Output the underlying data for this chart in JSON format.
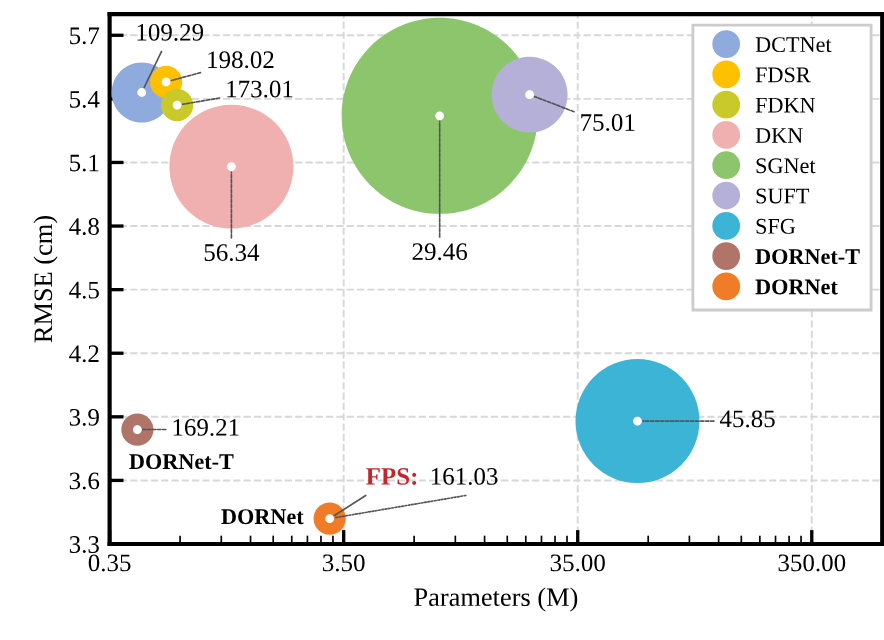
{
  "chart_data": {
    "type": "bubble",
    "xlabel": "Parameters (M)",
    "ylabel": "RMSE (cm)",
    "log": "x",
    "xlim": [
      0.35,
      700
    ],
    "xticks": [
      {
        "value": 0.35,
        "label": "0.35"
      },
      {
        "value": 3.5,
        "label": "3.50"
      },
      {
        "value": 35,
        "label": "35.00"
      },
      {
        "value": 350,
        "label": "350.00"
      }
    ],
    "ylim": [
      3.3,
      5.8
    ],
    "yticks": [
      3.3,
      3.6,
      3.9,
      4.2,
      4.5,
      4.8,
      5.1,
      5.4,
      5.7
    ],
    "grid": true,
    "legend": "top right",
    "marker": "circle",
    "series": [
      {
        "name": "DCTNet",
        "color": "#8faadc",
        "x": [
          0.48
        ],
        "values": [
          5.43
        ],
        "sizes": [
          0.094
        ]
      },
      {
        "name": "FDSR",
        "color": "#ffc000",
        "x": [
          0.61
        ],
        "values": [
          5.48
        ],
        "sizes": [
          0.027
        ]
      },
      {
        "name": "FDKN",
        "color": "#c9c92a",
        "x": [
          0.68
        ],
        "values": [
          5.37
        ],
        "sizes": [
          0.027
        ]
      },
      {
        "name": "DKN",
        "color": "#f0b0b0",
        "x": [
          1.16
        ],
        "values": [
          5.08
        ],
        "sizes": [
          0.4
        ]
      },
      {
        "name": "SGNet",
        "color": "#8dc56c",
        "x": [
          9.0
        ],
        "values": [
          5.32
        ],
        "sizes": [
          1
        ]
      },
      {
        "name": "SUFT",
        "color": "#b4b0d8",
        "x": [
          21.8
        ],
        "values": [
          5.42
        ],
        "sizes": [
          0.15
        ]
      },
      {
        "name": "SFG",
        "color": "#3cb4d6",
        "x": [
          63
        ],
        "values": [
          3.88
        ],
        "sizes": [
          0.4
        ]
      },
      {
        "name": "DORNet-T",
        "color": "#b07468",
        "x": [
          0.46
        ],
        "values": [
          3.84
        ],
        "sizes": [
          0.027
        ]
      },
      {
        "name": "DORNet",
        "color": "#f07c28",
        "x": [
          3.05
        ],
        "values": [
          3.42
        ],
        "sizes": [
          0.027
        ]
      }
    ],
    "annotations": [
      {
        "text": "109.29",
        "x": 0.48,
        "y": 5.43
      },
      {
        "text": "198.02",
        "x": 0.61,
        "y": 5.48
      },
      {
        "text": "173.01",
        "x": 0.68,
        "y": 5.37
      },
      {
        "text": "56.34",
        "x": 1.16,
        "y": 5.08
      },
      {
        "text": "29.46",
        "x": 9.0,
        "y": 5.32
      },
      {
        "text": "75.01",
        "x": 21.8,
        "y": 5.42
      },
      {
        "text": "45.85",
        "x": 63,
        "y": 3.88
      },
      {
        "text": "169.21",
        "x": 0.46,
        "y": 3.84
      },
      {
        "text": "161.03",
        "x": 3.05,
        "y": 3.42
      },
      {
        "text": "FPS:",
        "x": 3.05,
        "y": 3.42
      }
    ]
  }
}
